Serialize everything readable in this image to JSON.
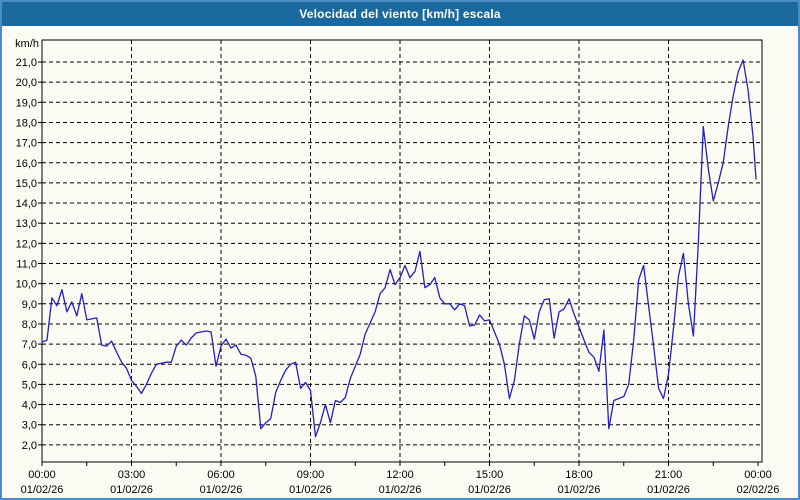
{
  "window": {
    "title": "Velocidad del viento [km/h] escala"
  },
  "colors": {
    "titlebar": "#1a699e",
    "outer_border": "#4d8cc8",
    "background": "#fcfcf4",
    "line": "#2020c8",
    "grid": "#000000",
    "text": "#000000"
  },
  "chart_data": {
    "type": "line",
    "title": "Velocidad del viento [km/h] escala",
    "grid": "dashed",
    "legend": "none",
    "y_axis": {
      "unit_label": "km/h",
      "tick_values": [
        21,
        20,
        19,
        18,
        17,
        16,
        15,
        14,
        13,
        12,
        11,
        10,
        9,
        8,
        7,
        6,
        5,
        4,
        3,
        2
      ],
      "tick_labels": [
        "21,0",
        "20,0",
        "19,0",
        "18,0",
        "17,0",
        "16,0",
        "15,0",
        "14,0",
        "13,0",
        "12,0",
        "11,0",
        "10,0",
        "9,0",
        "8,0",
        "7,0",
        "6,0",
        "5,0",
        "4,0",
        "3,0",
        "2,0"
      ],
      "ylim": [
        1.15,
        22.1
      ]
    },
    "x_axis": {
      "span_hours": 24,
      "tick_interval_hours": 3,
      "minor_tick_interval_hours": 1.5,
      "tick_times": [
        "00:00",
        "03:00",
        "06:00",
        "09:00",
        "12:00",
        "15:00",
        "18:00",
        "21:00",
        "00:00"
      ],
      "tick_dates": [
        "01/02/26",
        "01/02/26",
        "01/02/26",
        "01/02/26",
        "01/02/26",
        "01/02/26",
        "01/02/26",
        "01/02/26",
        "02/02/26"
      ]
    },
    "series": [
      {
        "name": "Velocidad del viento [km/h]",
        "color": "#2020c8",
        "points_format": "[minutes_since_00:00, km/h]",
        "points": [
          [
            0,
            7.1
          ],
          [
            10,
            7.2
          ],
          [
            20,
            9.3
          ],
          [
            30,
            8.9
          ],
          [
            40,
            9.7
          ],
          [
            50,
            8.6
          ],
          [
            60,
            9.1
          ],
          [
            70,
            8.4
          ],
          [
            80,
            9.5
          ],
          [
            90,
            8.2
          ],
          [
            100,
            8.25
          ],
          [
            110,
            8.3
          ],
          [
            120,
            6.95
          ],
          [
            130,
            6.9
          ],
          [
            140,
            7.15
          ],
          [
            150,
            6.6
          ],
          [
            160,
            6.1
          ],
          [
            170,
            5.8
          ],
          [
            180,
            5.2
          ],
          [
            190,
            4.9
          ],
          [
            200,
            4.55
          ],
          [
            210,
            5.0
          ],
          [
            220,
            5.55
          ],
          [
            230,
            6.0
          ],
          [
            240,
            6.05
          ],
          [
            250,
            6.1
          ],
          [
            260,
            6.1
          ],
          [
            270,
            6.9
          ],
          [
            280,
            7.2
          ],
          [
            290,
            6.95
          ],
          [
            300,
            7.3
          ],
          [
            310,
            7.55
          ],
          [
            320,
            7.6
          ],
          [
            330,
            7.65
          ],
          [
            340,
            7.6
          ],
          [
            350,
            5.9
          ],
          [
            360,
            6.9
          ],
          [
            370,
            7.25
          ],
          [
            380,
            6.8
          ],
          [
            390,
            6.95
          ],
          [
            400,
            6.5
          ],
          [
            410,
            6.45
          ],
          [
            420,
            6.3
          ],
          [
            430,
            5.4
          ],
          [
            440,
            2.8
          ],
          [
            450,
            3.1
          ],
          [
            460,
            3.3
          ],
          [
            470,
            4.6
          ],
          [
            480,
            5.2
          ],
          [
            490,
            5.7
          ],
          [
            500,
            6.0
          ],
          [
            510,
            6.1
          ],
          [
            520,
            4.8
          ],
          [
            530,
            5.1
          ],
          [
            540,
            4.7
          ],
          [
            550,
            2.4
          ],
          [
            560,
            3.1
          ],
          [
            570,
            4.0
          ],
          [
            580,
            3.1
          ],
          [
            590,
            4.2
          ],
          [
            600,
            4.1
          ],
          [
            610,
            4.35
          ],
          [
            620,
            5.3
          ],
          [
            630,
            5.9
          ],
          [
            640,
            6.5
          ],
          [
            650,
            7.5
          ],
          [
            660,
            8.05
          ],
          [
            670,
            8.6
          ],
          [
            680,
            9.5
          ],
          [
            690,
            9.8
          ],
          [
            700,
            10.7
          ],
          [
            710,
            9.95
          ],
          [
            720,
            10.3
          ],
          [
            730,
            10.9
          ],
          [
            740,
            10.3
          ],
          [
            750,
            10.6
          ],
          [
            760,
            11.6
          ],
          [
            770,
            9.8
          ],
          [
            780,
            9.95
          ],
          [
            790,
            10.3
          ],
          [
            800,
            9.3
          ],
          [
            810,
            9.0
          ],
          [
            820,
            9.0
          ],
          [
            830,
            8.7
          ],
          [
            840,
            9.0
          ],
          [
            850,
            8.9
          ],
          [
            860,
            7.9
          ],
          [
            870,
            7.95
          ],
          [
            880,
            8.45
          ],
          [
            890,
            8.15
          ],
          [
            900,
            8.2
          ],
          [
            910,
            7.6
          ],
          [
            920,
            7.0
          ],
          [
            930,
            6.0
          ],
          [
            940,
            4.3
          ],
          [
            950,
            5.2
          ],
          [
            960,
            7.0
          ],
          [
            970,
            8.4
          ],
          [
            980,
            8.2
          ],
          [
            990,
            7.25
          ],
          [
            1000,
            8.6
          ],
          [
            1010,
            9.2
          ],
          [
            1020,
            9.25
          ],
          [
            1030,
            7.3
          ],
          [
            1040,
            8.6
          ],
          [
            1050,
            8.75
          ],
          [
            1060,
            9.25
          ],
          [
            1070,
            8.5
          ],
          [
            1080,
            7.85
          ],
          [
            1090,
            7.2
          ],
          [
            1100,
            6.6
          ],
          [
            1110,
            6.35
          ],
          [
            1120,
            5.65
          ],
          [
            1130,
            7.7
          ],
          [
            1140,
            2.8
          ],
          [
            1150,
            4.2
          ],
          [
            1160,
            4.3
          ],
          [
            1170,
            4.4
          ],
          [
            1180,
            5.0
          ],
          [
            1190,
            7.2
          ],
          [
            1200,
            10.2
          ],
          [
            1210,
            10.9
          ],
          [
            1220,
            8.9
          ],
          [
            1230,
            6.9
          ],
          [
            1240,
            4.8
          ],
          [
            1250,
            4.3
          ],
          [
            1260,
            5.5
          ],
          [
            1270,
            7.8
          ],
          [
            1280,
            10.35
          ],
          [
            1290,
            11.5
          ],
          [
            1300,
            9.0
          ],
          [
            1310,
            7.4
          ],
          [
            1320,
            12.0
          ],
          [
            1330,
            17.8
          ],
          [
            1340,
            15.7
          ],
          [
            1350,
            14.1
          ],
          [
            1360,
            15.0
          ],
          [
            1370,
            16.0
          ],
          [
            1380,
            17.8
          ],
          [
            1390,
            19.3
          ],
          [
            1400,
            20.5
          ],
          [
            1410,
            21.1
          ],
          [
            1420,
            19.6
          ],
          [
            1430,
            17.3
          ],
          [
            1436,
            15.2
          ]
        ]
      }
    ]
  }
}
